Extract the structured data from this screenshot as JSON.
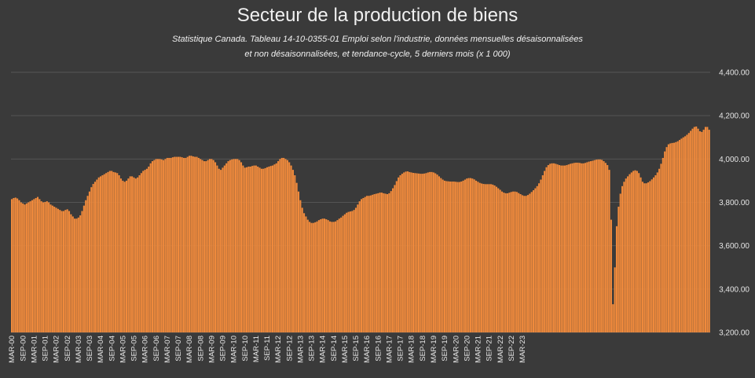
{
  "chart_data": {
    "type": "bar",
    "title": "Secteur de la production de biens",
    "subtitle_line1": "Statistique Canada. Tableau 14-10-0355-01  Emploi selon l'industrie, données mensuelles désaisonnalisées",
    "subtitle_line2": "et non désaisonnalisées, et tendance-cycle, 5 derniers mois (x 1 000)",
    "xlabel": "",
    "ylabel": "",
    "ylim": [
      3200,
      4400
    ],
    "y_ticks": [
      "3,200.00",
      "3,400.00",
      "3,600.00",
      "3,800.00",
      "4,000.00",
      "4,200.00",
      "4,400.00"
    ],
    "y_tick_values": [
      3200,
      3400,
      3600,
      3800,
      4000,
      4200,
      4400
    ],
    "y_axis_position": "right",
    "grid": true,
    "bar_color": "#f08a3c",
    "x_start": "2000-03",
    "x_end": "2023-07",
    "x_ticks": [
      "MAR-00",
      "SEP-00",
      "MAR-01",
      "SEP-01",
      "MAR-02",
      "SEP-02",
      "MAR-03",
      "SEP-03",
      "MAR-04",
      "SEP-04",
      "MAR-05",
      "SEP-05",
      "MAR-06",
      "SEP-06",
      "MAR-07",
      "SEP-07",
      "MAR-08",
      "SEP-08",
      "MAR-09",
      "SEP-09",
      "MAR-10",
      "SEP-10",
      "MAR-11",
      "SEP-11",
      "MAR-12",
      "SEP-12",
      "MAR-13",
      "SEP-13",
      "MAR-14",
      "SEP-14",
      "MAR-15",
      "SEP-15",
      "MAR-16",
      "SEP-16",
      "MAR-17",
      "SEP-17",
      "MAR-18",
      "SEP-18",
      "MAR-19",
      "SEP-19",
      "MAR-20",
      "SEP-20",
      "MAR-21",
      "SEP-21",
      "MAR-22",
      "SEP-22",
      "MAR-23"
    ],
    "series": [
      {
        "values": [
          3815,
          3820,
          3822,
          3818,
          3810,
          3800,
          3795,
          3790,
          3795,
          3800,
          3805,
          3810,
          3815,
          3820,
          3825,
          3815,
          3805,
          3800,
          3802,
          3805,
          3800,
          3790,
          3785,
          3780,
          3775,
          3770,
          3765,
          3760,
          3760,
          3765,
          3768,
          3760,
          3745,
          3735,
          3725,
          3725,
          3730,
          3740,
          3760,
          3785,
          3810,
          3830,
          3850,
          3870,
          3885,
          3895,
          3905,
          3915,
          3920,
          3925,
          3930,
          3935,
          3940,
          3945,
          3945,
          3940,
          3938,
          3935,
          3925,
          3910,
          3900,
          3895,
          3900,
          3910,
          3920,
          3920,
          3915,
          3910,
          3915,
          3925,
          3935,
          3945,
          3950,
          3955,
          3965,
          3980,
          3990,
          3995,
          4000,
          4000,
          4000,
          3998,
          3995,
          4000,
          4005,
          4005,
          4005,
          4008,
          4010,
          4010,
          4010,
          4010,
          4008,
          4005,
          4005,
          4010,
          4015,
          4015,
          4012,
          4010,
          4010,
          4005,
          4000,
          3995,
          3990,
          3990,
          3995,
          4000,
          4000,
          3995,
          3985,
          3970,
          3955,
          3950,
          3960,
          3970,
          3980,
          3990,
          3995,
          3998,
          4000,
          4000,
          4000,
          3995,
          3985,
          3970,
          3960,
          3962,
          3965,
          3965,
          3968,
          3970,
          3970,
          3965,
          3960,
          3955,
          3955,
          3958,
          3962,
          3965,
          3968,
          3970,
          3975,
          3980,
          3990,
          4000,
          4005,
          4005,
          4000,
          3995,
          3985,
          3970,
          3950,
          3925,
          3890,
          3850,
          3810,
          3775,
          3750,
          3735,
          3720,
          3710,
          3705,
          3705,
          3708,
          3712,
          3718,
          3722,
          3725,
          3725,
          3722,
          3718,
          3712,
          3710,
          3710,
          3712,
          3718,
          3725,
          3730,
          3738,
          3745,
          3752,
          3756,
          3758,
          3760,
          3765,
          3775,
          3790,
          3805,
          3815,
          3820,
          3825,
          3830,
          3830,
          3832,
          3835,
          3838,
          3840,
          3842,
          3845,
          3845,
          3842,
          3840,
          3838,
          3842,
          3852,
          3865,
          3880,
          3898,
          3915,
          3925,
          3932,
          3938,
          3942,
          3943,
          3940,
          3938,
          3936,
          3935,
          3934,
          3933,
          3932,
          3932,
          3933,
          3935,
          3938,
          3940,
          3940,
          3938,
          3934,
          3928,
          3920,
          3912,
          3905,
          3900,
          3898,
          3897,
          3896,
          3896,
          3896,
          3895,
          3894,
          3894,
          3896,
          3900,
          3905,
          3910,
          3912,
          3912,
          3910,
          3906,
          3900,
          3895,
          3890,
          3887,
          3885,
          3884,
          3884,
          3884,
          3884,
          3882,
          3878,
          3872,
          3865,
          3858,
          3850,
          3845,
          3842,
          3842,
          3845,
          3848,
          3850,
          3850,
          3848,
          3843,
          3838,
          3833,
          3830,
          3830,
          3834,
          3840,
          3848,
          3856,
          3865,
          3875,
          3888,
          3905,
          3925,
          3945,
          3962,
          3972,
          3978,
          3980,
          3980,
          3978,
          3975,
          3972,
          3970,
          3970,
          3970,
          3972,
          3975,
          3978,
          3980,
          3982,
          3983,
          3983,
          3982,
          3980,
          3980,
          3982,
          3985,
          3988,
          3990,
          3992,
          3995,
          3997,
          3998,
          3998,
          3996,
          3990,
          3982,
          3972,
          3950,
          3720,
          3330,
          3500,
          3690,
          3780,
          3840,
          3875,
          3895,
          3910,
          3920,
          3930,
          3938,
          3945,
          3948,
          3945,
          3935,
          3915,
          3895,
          3888,
          3888,
          3892,
          3898,
          3906,
          3915,
          3925,
          3938,
          3955,
          3978,
          4005,
          4035,
          4055,
          4068,
          4072,
          4074,
          4075,
          4078,
          4082,
          4088,
          4094,
          4100,
          4105,
          4112,
          4120,
          4130,
          4140,
          4148,
          4150,
          4140,
          4128,
          4125,
          4135,
          4148,
          4148,
          4135
        ]
      }
    ]
  }
}
